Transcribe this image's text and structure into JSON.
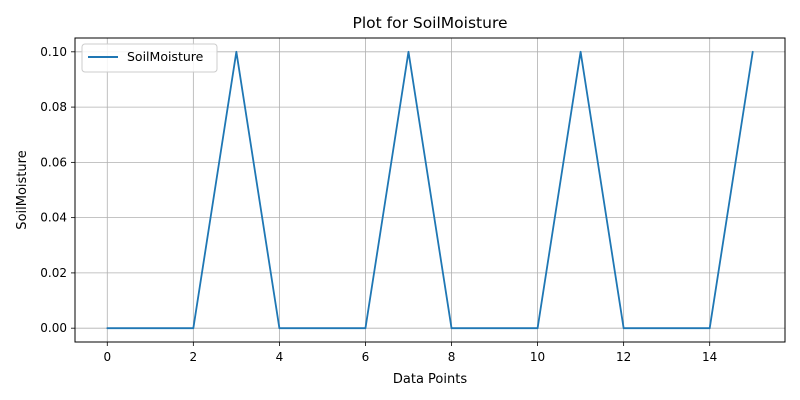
{
  "chart_data": {
    "type": "line",
    "title": "Plot for SoilMoisture",
    "xlabel": "Data Points",
    "ylabel": "SoilMoisture",
    "xlim": [
      -0.75,
      15.75
    ],
    "ylim": [
      -0.005,
      0.105
    ],
    "x_ticks": [
      0,
      2,
      4,
      6,
      8,
      10,
      12,
      14
    ],
    "y_ticks": [
      0.0,
      0.02,
      0.04,
      0.06,
      0.08,
      0.1
    ],
    "y_tick_labels": [
      "0.00",
      "0.02",
      "0.04",
      "0.06",
      "0.08",
      "0.10"
    ],
    "grid": true,
    "legend_position": "top-left",
    "series": [
      {
        "name": "SoilMoisture",
        "color": "#1f77b4",
        "x": [
          0,
          1,
          2,
          3,
          4,
          5,
          6,
          7,
          8,
          9,
          10,
          11,
          12,
          13,
          14,
          15
        ],
        "values": [
          0.0,
          0.0,
          0.0,
          0.1,
          0.0,
          0.0,
          0.0,
          0.1,
          0.0,
          0.0,
          0.0,
          0.1,
          0.0,
          0.0,
          0.0,
          0.1
        ]
      }
    ]
  }
}
